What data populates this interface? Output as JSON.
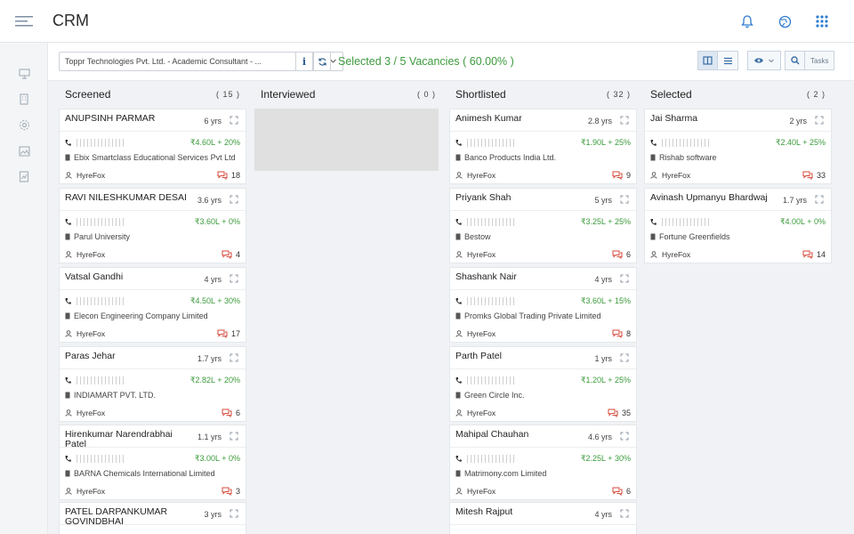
{
  "header": {
    "title": "CRM"
  },
  "toolbar": {
    "vacancy_select": "Toppr Technologies Pvt. Ltd. - Academic Consultant - ...",
    "info_label": "i",
    "selected_text": "Selected 3 / 5 Vacancies ( 60.00% )",
    "tasks_label": "Tasks"
  },
  "columns": [
    {
      "title": "Screened",
      "count": "( 15 )",
      "cards": [
        {
          "name": "ANUPSINH PARMAR",
          "exp": "6 yrs",
          "salary": "₹4.60L + 20%",
          "company": "Ebix Smartclass Educational Services Pvt Ltd",
          "source": "HyreFox",
          "comments": "18"
        },
        {
          "name": "RAVI NILESHKUMAR DESAI",
          "exp": "3.6 yrs",
          "salary": "₹3.60L + 0%",
          "company": "Parul University",
          "source": "HyreFox",
          "comments": "4"
        },
        {
          "name": "Vatsal Gandhi",
          "exp": "4 yrs",
          "salary": "₹4.50L + 30%",
          "company": "Elecon Engineering Company Limited",
          "source": "HyreFox",
          "comments": "17"
        },
        {
          "name": "Paras Jehar",
          "exp": "1.7 yrs",
          "salary": "₹2.82L + 20%",
          "company": "INDIAMART PVT. LTD.",
          "source": "HyreFox",
          "comments": "6"
        },
        {
          "name": "Hirenkumar Narendrabhai Patel",
          "exp": "1.1 yrs",
          "salary": "₹3.00L + 0%",
          "company": "BARNA Chemicals International Limited",
          "source": "HyreFox",
          "comments": "3"
        },
        {
          "name": "PATEL DARPANKUMAR GOVINDBHAI",
          "exp": "3 yrs",
          "salary": "",
          "company": "",
          "source": "",
          "comments": ""
        }
      ]
    },
    {
      "title": "Interviewed",
      "count": "( 0 )",
      "cards": []
    },
    {
      "title": "Shortlisted",
      "count": "( 32 )",
      "cards": [
        {
          "name": "Animesh Kumar",
          "exp": "2.8 yrs",
          "salary": "₹1.90L + 25%",
          "company": "Banco Products India Ltd.",
          "source": "HyreFox",
          "comments": "9"
        },
        {
          "name": "Priyank Shah",
          "exp": "5 yrs",
          "salary": "₹3.25L + 25%",
          "company": "Bestow",
          "source": "HyreFox",
          "comments": "6"
        },
        {
          "name": "Shashank Nair",
          "exp": "4 yrs",
          "salary": "₹3.60L + 15%",
          "company": "Promks Global Trading Private Limited",
          "source": "HyreFox",
          "comments": "8"
        },
        {
          "name": "Parth Patel",
          "exp": "1 yrs",
          "salary": "₹1.20L + 25%",
          "company": "Green Circle Inc.",
          "source": "HyreFox",
          "comments": "35"
        },
        {
          "name": "Mahipal Chauhan",
          "exp": "4.6 yrs",
          "salary": "₹2.25L + 30%",
          "company": "Matrimony.com Limited",
          "source": "HyreFox",
          "comments": "6"
        },
        {
          "name": "Mitesh Rajput",
          "exp": "4 yrs",
          "salary": "",
          "company": "",
          "source": "",
          "comments": ""
        }
      ]
    },
    {
      "title": "Selected",
      "count": "( 2 )",
      "cards": [
        {
          "name": "Jai Sharma",
          "exp": "2 yrs",
          "salary": "₹2.40L + 25%",
          "company": "Rishab software",
          "source": "HyreFox",
          "comments": "33"
        },
        {
          "name": "Avinash Upmanyu Bhardwaj",
          "exp": "1.7 yrs",
          "salary": "₹4.00L + 0%",
          "company": "Fortune Greenfields",
          "source": "HyreFox",
          "comments": "14"
        }
      ]
    }
  ]
}
